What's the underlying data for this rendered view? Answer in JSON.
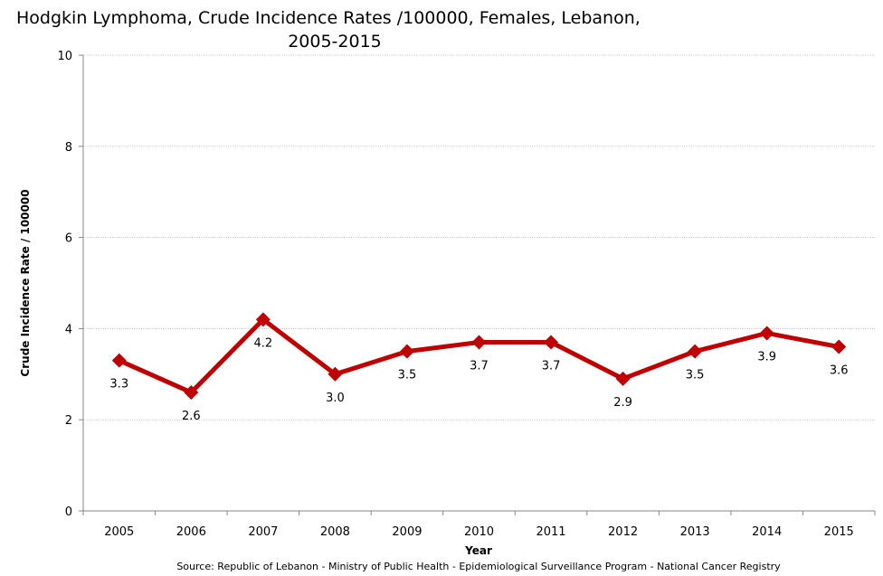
{
  "chart_data": {
    "type": "line",
    "title_line1": "Hodgkin Lymphoma, Crude Incidence Rates /100000, Females, Lebanon,",
    "title_line2": "2005-2015",
    "xlabel": "Year",
    "ylabel": "Crude Incidence Rate / 100000",
    "source": "Source:  Republic of Lebanon  - Ministry of Public Health - Epidemiological Surveillance Program - National Cancer Registry",
    "categories": [
      "2005",
      "2006",
      "2007",
      "2008",
      "2009",
      "2010",
      "2011",
      "2012",
      "2013",
      "2014",
      "2015"
    ],
    "series": [
      {
        "name": "Females",
        "color": "#C00000",
        "values": [
          3.3,
          2.6,
          4.2,
          3.0,
          3.5,
          3.7,
          3.7,
          2.9,
          3.5,
          3.9,
          3.6
        ],
        "labels": [
          "3.3",
          "2.6",
          "4.2",
          "3.0",
          "3.5",
          "3.7",
          "3.7",
          "2.9",
          "3.5",
          "3.9",
          "3.6"
        ]
      }
    ],
    "ylim": [
      0,
      10
    ],
    "yticks": [
      0,
      2,
      4,
      6,
      8,
      10
    ],
    "ytick_labels": [
      "0",
      "2",
      "4",
      "6",
      "8",
      "10"
    ],
    "grid": true,
    "legend": "none"
  }
}
